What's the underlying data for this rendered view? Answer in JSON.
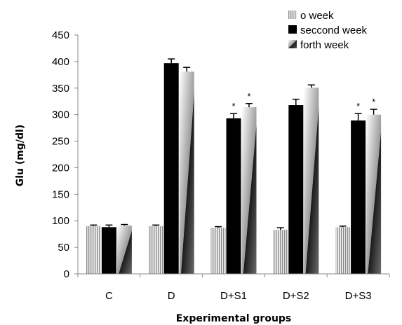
{
  "chart_data": {
    "type": "bar",
    "title": "",
    "xlabel": "Experimental groups",
    "ylabel": "Glu (mg/dl)",
    "ylim": [
      0,
      450
    ],
    "yticks": [
      0,
      50,
      100,
      150,
      200,
      250,
      300,
      350,
      400,
      450
    ],
    "categories": [
      "C",
      "D",
      "D+S1",
      "D+S2",
      "D+S3"
    ],
    "series": [
      {
        "name": "o week",
        "values": [
          90,
          90,
          87,
          83,
          88
        ],
        "errors": [
          2,
          2,
          2,
          4,
          2
        ],
        "significant": [
          false,
          false,
          false,
          false,
          false
        ]
      },
      {
        "name": "seccond week",
        "values": [
          88,
          397,
          293,
          318,
          289
        ],
        "errors": [
          4,
          8,
          9,
          11,
          13
        ],
        "significant": [
          false,
          false,
          true,
          false,
          true
        ]
      },
      {
        "name": "forth week",
        "values": [
          91,
          381,
          314,
          351,
          300
        ],
        "errors": [
          2,
          8,
          7,
          5,
          10
        ],
        "significant": [
          false,
          false,
          true,
          false,
          true
        ]
      }
    ],
    "significance_marker": "*",
    "grid": false,
    "legend_position": "top-right",
    "colors": {
      "o_week": "#c8c8c8",
      "seccond_week": "#000000",
      "forth_week_light": "#ffffff",
      "forth_week_dark": "#2a2a2a"
    }
  }
}
